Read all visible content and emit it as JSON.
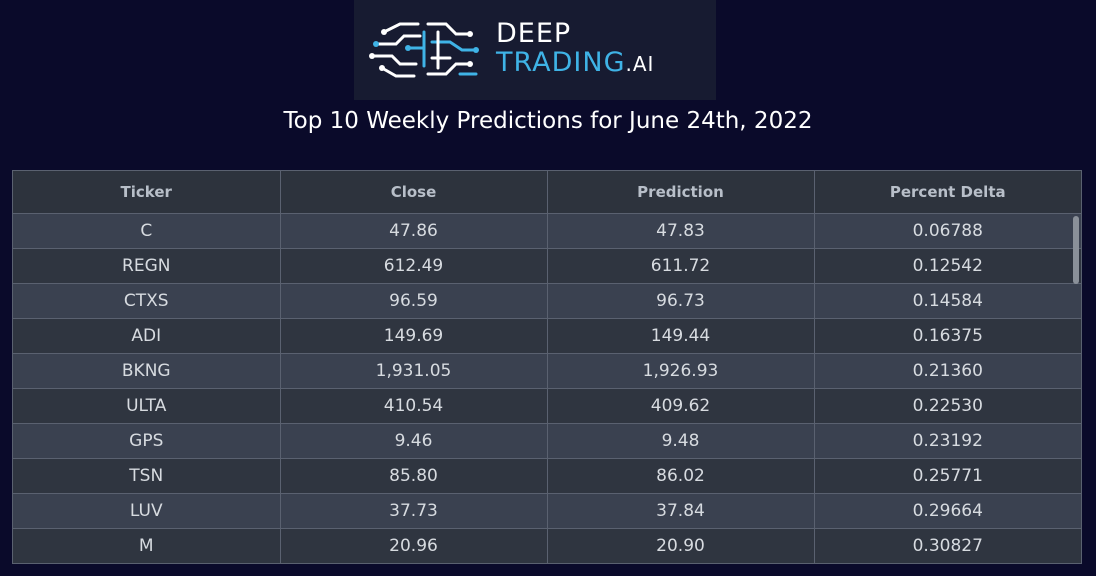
{
  "logo": {
    "line1": "DEEP",
    "line2": "TRADING",
    "suffix": ".AI",
    "icon": "brain-circuit-icon",
    "colors": {
      "accent": "#3fb3e6",
      "white": "#ffffff",
      "background": "#171b31"
    }
  },
  "title": "Top 10 Weekly Predictions for June 24th, 2022",
  "table": {
    "headers": [
      "Ticker",
      "Close",
      "Prediction",
      "Percent Delta"
    ],
    "rows": [
      [
        "C",
        "47.86",
        "47.83",
        "0.06788"
      ],
      [
        "REGN",
        "612.49",
        "611.72",
        "0.12542"
      ],
      [
        "CTXS",
        "96.59",
        "96.73",
        "0.14584"
      ],
      [
        "ADI",
        "149.69",
        "149.44",
        "0.16375"
      ],
      [
        "BKNG",
        "1,931.05",
        "1,926.93",
        "0.21360"
      ],
      [
        "ULTA",
        "410.54",
        "409.62",
        "0.22530"
      ],
      [
        "GPS",
        "9.46",
        "9.48",
        "0.23192"
      ],
      [
        "TSN",
        "85.80",
        "86.02",
        "0.25771"
      ],
      [
        "LUV",
        "37.73",
        "37.84",
        "0.29664"
      ],
      [
        "M",
        "20.96",
        "20.90",
        "0.30827"
      ]
    ]
  },
  "colors": {
    "page_background": "#0a0a2a",
    "header_background": "#2d333d",
    "row_light": "#3a4150",
    "row_dark": "#2f3540"
  }
}
